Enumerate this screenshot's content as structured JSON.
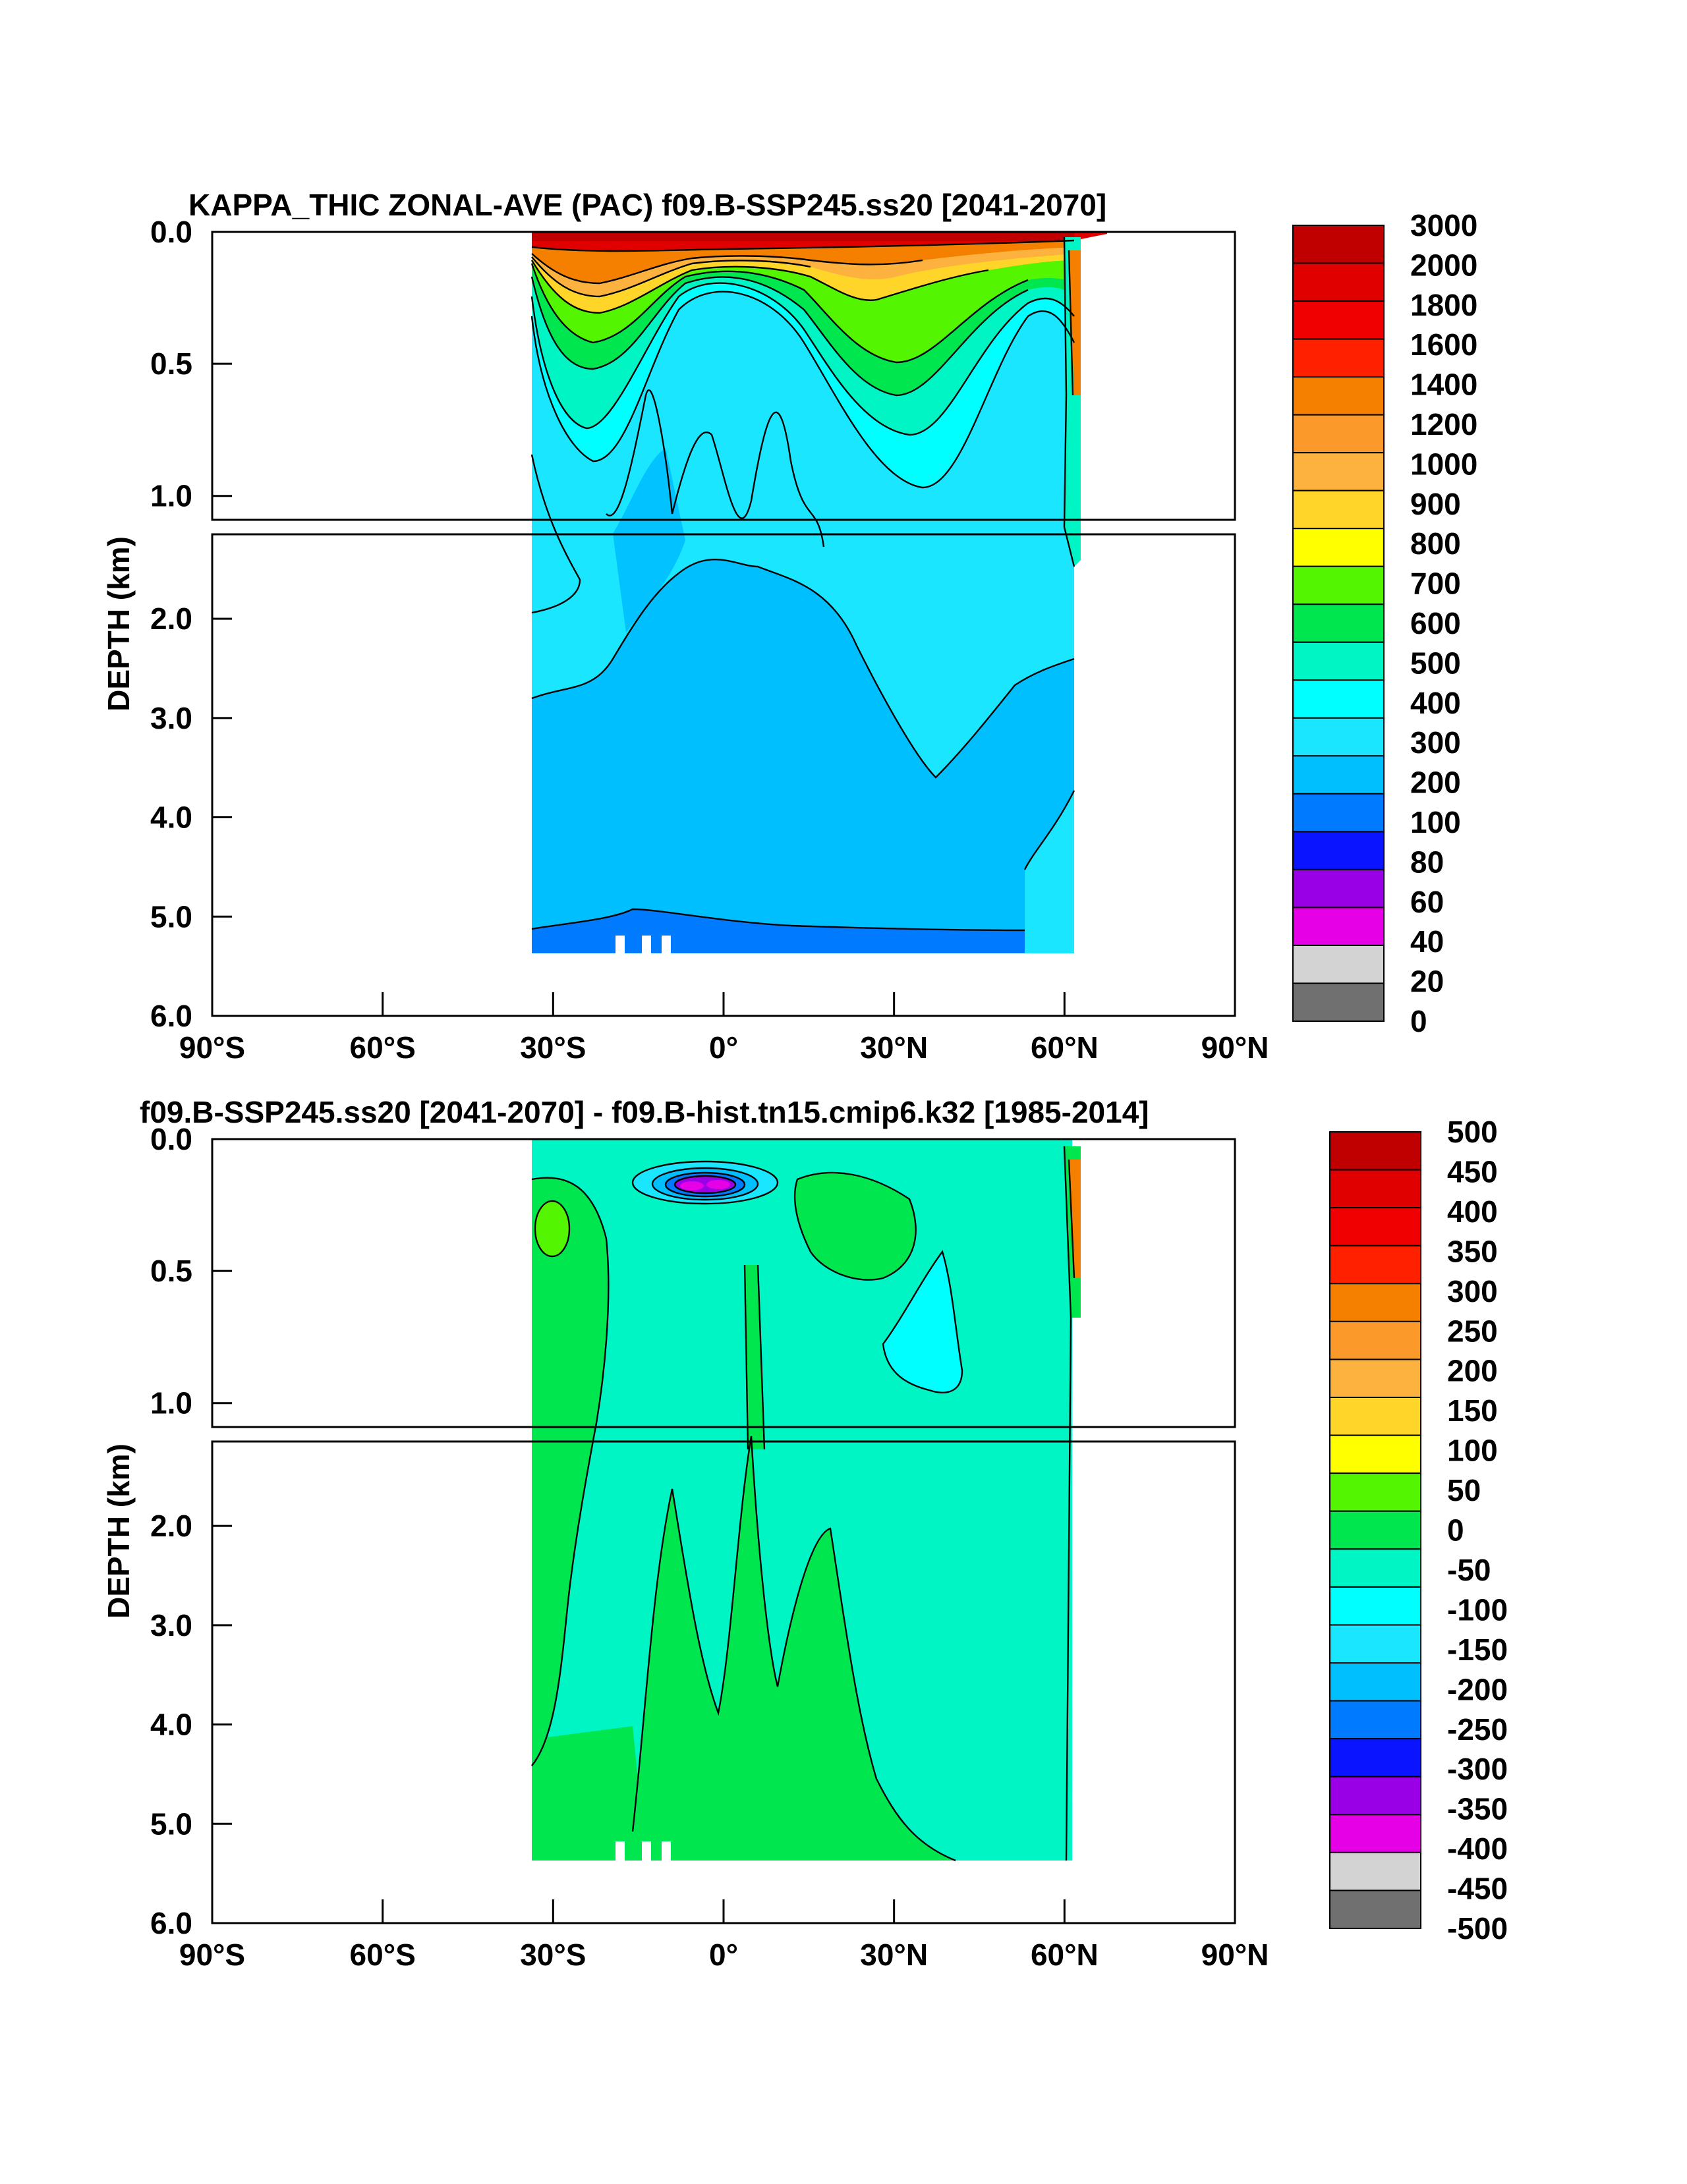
{
  "chart_data": [
    {
      "type": "heatmap",
      "title": "KAPPA_THIC ZONAL-AVE (PAC) f09.B-SSP245.ss20 [2041-2070]",
      "ylabel": "DEPTH (km)",
      "xlabel": "",
      "x_ticks": [
        "90°S",
        "60°S",
        "30°S",
        "0°",
        "30°N",
        "60°N",
        "90°N"
      ],
      "x_range": [
        -90,
        90
      ],
      "y_ticks_upper": [
        "0.0",
        "0.5",
        "1.0"
      ],
      "y_ticks_lower": [
        "2.0",
        "3.0",
        "4.0",
        "5.0",
        "6.0"
      ],
      "y_range_km": [
        0,
        6
      ],
      "data_lat_extent": [
        -34,
        61
      ],
      "colorbar_labels": [
        "3000",
        "2000",
        "1800",
        "1600",
        "1400",
        "1200",
        "1000",
        "900",
        "800",
        "700",
        "600",
        "500",
        "400",
        "300",
        "200",
        "100",
        "80",
        "60",
        "40",
        "20",
        "0"
      ],
      "regions": [
        {
          "label": "300",
          "lat": [
            -34,
            61
          ],
          "depth": [
            0.6,
            2.7
          ]
        },
        {
          "label": "200",
          "lat": [
            -34,
            55
          ],
          "depth": [
            2.7,
            5.2
          ]
        },
        {
          "label": "100",
          "lat": [
            -34,
            52
          ],
          "depth": [
            5.2,
            5.35
          ]
        },
        {
          "label": "3000",
          "lat": [
            -34,
            61
          ],
          "depth": [
            0.0,
            0.05
          ]
        },
        {
          "label": "1400",
          "lat": [
            -34,
            -20
          ],
          "depth": [
            0.15,
            0.25
          ]
        },
        {
          "label": "700",
          "lat": [
            20,
            40
          ],
          "depth": [
            0.25,
            0.5
          ]
        }
      ]
    },
    {
      "type": "heatmap",
      "title": "f09.B-SSP245.ss20 [2041-2070] - f09.B-hist.tn15.cmip6.k32 [1985-2014]",
      "ylabel": "DEPTH (km)",
      "xlabel": "",
      "x_ticks": [
        "90°S",
        "60°S",
        "30°S",
        "0°",
        "30°N",
        "60°N",
        "90°N"
      ],
      "x_range": [
        -90,
        90
      ],
      "y_ticks_upper": [
        "0.0",
        "0.5",
        "1.0"
      ],
      "y_ticks_lower": [
        "2.0",
        "3.0",
        "4.0",
        "5.0",
        "6.0"
      ],
      "y_range_km": [
        0,
        6
      ],
      "data_lat_extent": [
        -34,
        61
      ],
      "colorbar_labels": [
        "500",
        "450",
        "400",
        "350",
        "300",
        "250",
        "200",
        "150",
        "100",
        "50",
        "0",
        "-50",
        "-100",
        "-150",
        "-200",
        "-250",
        "-300",
        "-350",
        "-400",
        "-450",
        "-500"
      ],
      "regions": [
        {
          "label": "0",
          "lat": [
            -34,
            61
          ],
          "depth": [
            0.0,
            5.35
          ]
        },
        {
          "label": "50",
          "lat": [
            -34,
            -22
          ],
          "depth": [
            0.2,
            5.35
          ]
        },
        {
          "label": "100",
          "lat": [
            -31,
            -25
          ],
          "depth": [
            0.3,
            0.45
          ]
        },
        {
          "label": "-350",
          "lat": [
            -10,
            5
          ],
          "depth": [
            0.15,
            0.22
          ]
        },
        {
          "label": "-50",
          "lat": [
            30,
            43
          ],
          "depth": [
            0.6,
            1.05
          ]
        },
        {
          "label": "350",
          "lat": [
            60,
            62
          ],
          "depth": [
            0.1,
            0.6
          ]
        }
      ]
    }
  ],
  "colors": {
    "scale": [
      "#c00000",
      "#e00000",
      "#f00000",
      "#ff2000",
      "#f58000",
      "#fb9a2a",
      "#fdb23f",
      "#ffd52a",
      "#ffff00",
      "#54f500",
      "#00e64f",
      "#00f5c4",
      "#00ffff",
      "#1ae6ff",
      "#00bfff",
      "#007aff",
      "#0a14ff",
      "#9a00e6",
      "#e600e6",
      "#d3d3d3",
      "#707070"
    ]
  }
}
